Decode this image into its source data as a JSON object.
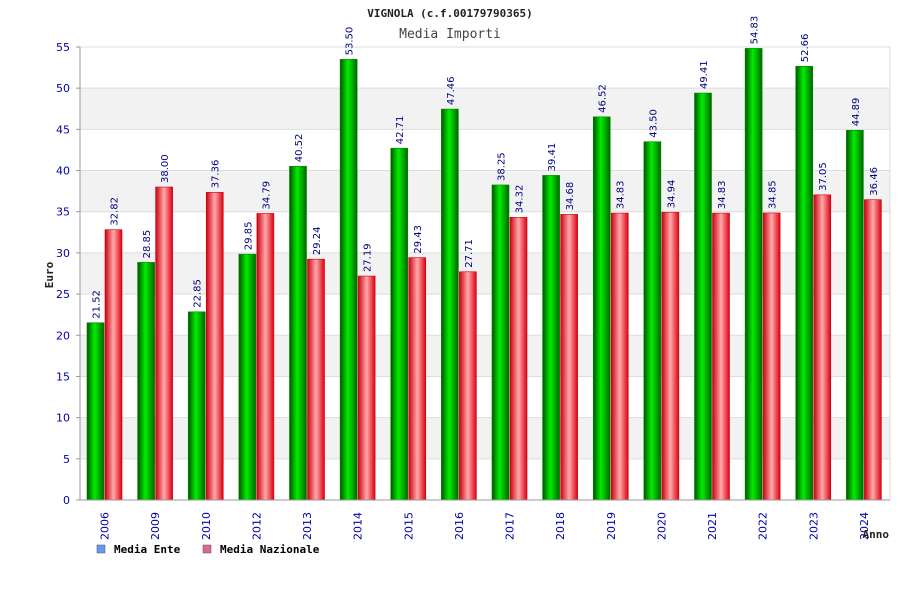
{
  "chart_data": {
    "type": "bar",
    "title": "VIGNOLA (c.f.00179790365)",
    "subtitle": "Media Importi",
    "xlabel": "Anno",
    "ylabel": "Euro",
    "ylim": [
      0,
      55
    ],
    "yticks": [
      0,
      5,
      10,
      15,
      20,
      25,
      30,
      35,
      40,
      45,
      50,
      55
    ],
    "categories": [
      "2006",
      "2009",
      "2010",
      "2012",
      "2013",
      "2014",
      "2015",
      "2016",
      "2017",
      "2018",
      "2019",
      "2020",
      "2021",
      "2022",
      "2023",
      "2024"
    ],
    "series": [
      {
        "name": "Media Ente",
        "values": [
          21.52,
          28.85,
          22.85,
          29.85,
          40.52,
          53.5,
          42.71,
          47.46,
          38.25,
          39.41,
          46.52,
          43.5,
          49.41,
          54.83,
          52.66,
          44.89
        ],
        "labels": [
          "21.52",
          "28.85",
          "22.85",
          "29.85",
          "40.52",
          "53.50",
          "42.71",
          "47.46",
          "38.25",
          "39.41",
          "46.52",
          "43.50",
          "49.41",
          "54.83",
          "52.66",
          "44.89"
        ],
        "color": "#00aa00",
        "legend_color": "#6699ee"
      },
      {
        "name": "Media Nazionale",
        "values": [
          32.82,
          38.0,
          37.36,
          34.79,
          29.24,
          27.19,
          29.43,
          27.71,
          34.32,
          34.68,
          34.83,
          34.94,
          34.83,
          34.85,
          37.05,
          36.46
        ],
        "labels": [
          "32.82",
          "38.00",
          "37.36",
          "34.79",
          "29.24",
          "27.19",
          "29.43",
          "27.71",
          "34.32",
          "34.68",
          "34.83",
          "34.94",
          "34.83",
          "34.85",
          "37.05",
          "36.46"
        ],
        "color": "#ee1122",
        "legend_color": "#dd6699"
      }
    ],
    "grid": true,
    "legend_position": "bottom-left"
  }
}
